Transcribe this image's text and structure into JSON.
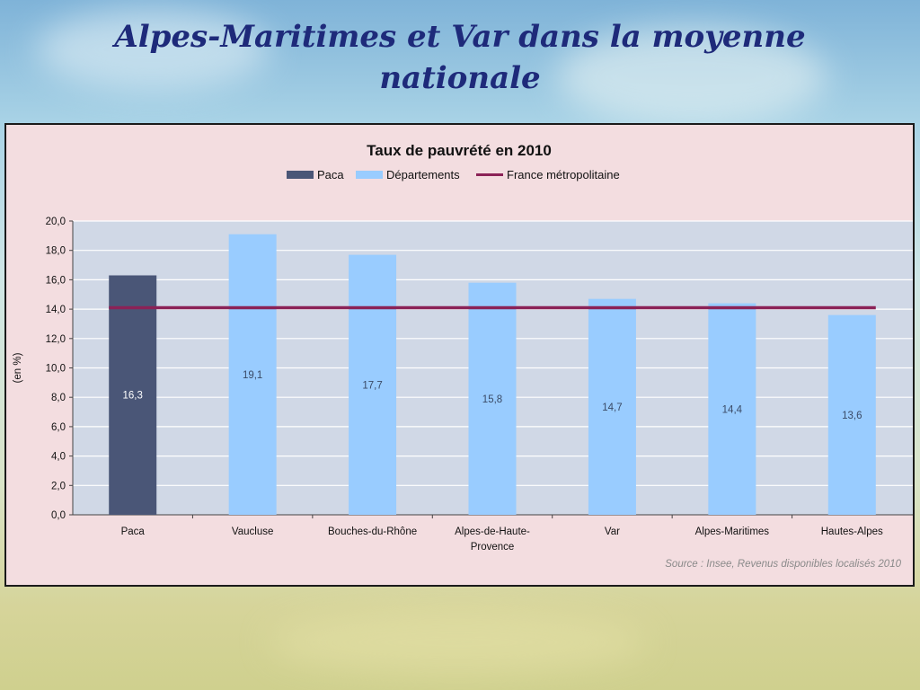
{
  "slide": {
    "title_line1": "Alpes-Maritimes et Var dans la moyenne",
    "title_line2": "nationale"
  },
  "chart_data": {
    "type": "bar",
    "title": "Taux de pauvrété en 2010",
    "ylabel": "(en %)",
    "xlabel": "",
    "ylim": [
      0,
      20
    ],
    "ytick_step": 2,
    "yticks": [
      "0,0",
      "2,0",
      "4,0",
      "6,0",
      "8,0",
      "10,0",
      "12,0",
      "14,0",
      "16,0",
      "18,0",
      "20,0"
    ],
    "categories": [
      "Paca",
      "Vaucluse",
      "Bouches-du-Rhône",
      "Alpes-de-Haute-Provence",
      "Var",
      "Alpes-Maritimes",
      "Hautes-Alpes"
    ],
    "category_labels": [
      [
        "Paca"
      ],
      [
        "Vaucluse"
      ],
      [
        "Bouches-du-Rhône"
      ],
      [
        "Alpes-de-Haute-",
        "Provence"
      ],
      [
        "Var"
      ],
      [
        "Alpes-Maritimes"
      ],
      [
        "Hautes-Alpes"
      ]
    ],
    "values": [
      16.3,
      19.1,
      17.7,
      15.8,
      14.7,
      14.4,
      13.6
    ],
    "value_labels": [
      "16,3",
      "19,1",
      "17,7",
      "15,8",
      "14,7",
      "14,4",
      "13,6"
    ],
    "bar_series": [
      "Paca",
      "Départements",
      "Départements",
      "Départements",
      "Départements",
      "Départements",
      "Départements"
    ],
    "legend": [
      {
        "name": "Paca",
        "kind": "bar",
        "color": "#4a5677"
      },
      {
        "name": "Départements",
        "kind": "bar",
        "color": "#99ccff"
      },
      {
        "name": "France métropolitaine",
        "kind": "line",
        "color": "#8b2257"
      }
    ],
    "reference_line": {
      "name": "France métropolitaine",
      "value": 14.1
    },
    "legend_position": "top",
    "grid": true,
    "plot_background": "#d0d8e6",
    "source": "Source : Insee, Revenus disponibles localisés 2010"
  }
}
